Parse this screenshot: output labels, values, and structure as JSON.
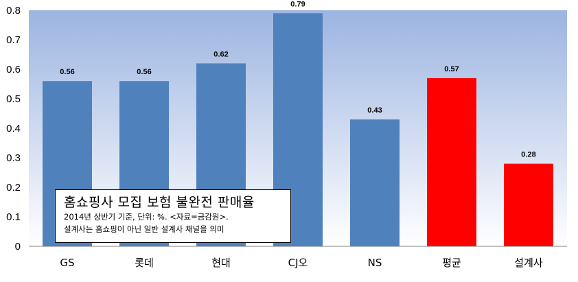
{
  "chart_data": {
    "type": "bar",
    "categories": [
      "GS",
      "롯데",
      "현대",
      "CJ오",
      "NS",
      "평균",
      "설계사"
    ],
    "values": [
      0.56,
      0.56,
      0.62,
      0.79,
      0.43,
      0.57,
      0.28
    ],
    "data_labels": [
      "0.56",
      "0.56",
      "0.62",
      "0.79",
      "0.43",
      "0.57",
      "0.28"
    ],
    "bar_colors": [
      "#4f81bd",
      "#4f81bd",
      "#4f81bd",
      "#4f81bd",
      "#4f81bd",
      "#ff0000",
      "#ff0000"
    ],
    "ylim": [
      0,
      0.8
    ],
    "yticks": [
      0,
      0.1,
      0.2,
      0.3,
      0.4,
      0.5,
      0.6,
      0.7,
      0.8
    ],
    "ytick_labels": [
      "0",
      "0.1",
      "0.2",
      "0.3",
      "0.4",
      "0.5",
      "0.6",
      "0.7",
      "0.8"
    ],
    "grid": false,
    "background": "gradient #9db5e2 to #ffffff",
    "xlabel": "",
    "ylabel": ""
  },
  "annotation": {
    "title": "홈쇼핑사 모집 보험 불완전 판매율",
    "line1": "2014년 상반기 기준, 단위: %. <자료=금감원>.",
    "line2": "설계사는 홈쇼핑이 아닌 일반 설계사 채널을 의미"
  }
}
